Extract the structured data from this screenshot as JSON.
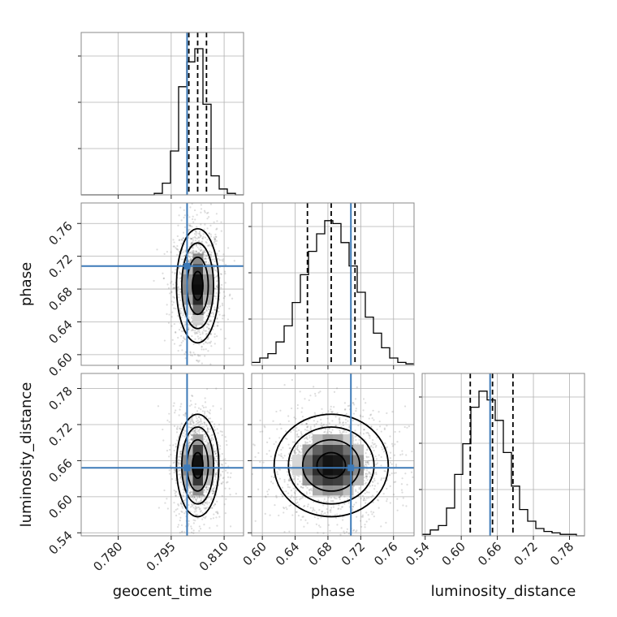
{
  "chart_data": {
    "type": "corner",
    "parameters": [
      "geocent_time",
      "phase",
      "luminosity_distance"
    ],
    "xlabels": [
      "geocent_time",
      "phase",
      "luminosity_distance"
    ],
    "ylabels": [
      "",
      "phase",
      "luminosity_distance"
    ],
    "ranges": {
      "geocent_time": [
        0.7695,
        0.8155
      ],
      "phase": [
        0.587,
        0.785
      ],
      "luminosity_distance": [
        0.535,
        0.805
      ]
    },
    "ticks": {
      "geocent_time": [
        "0.780",
        "0.795",
        "0.810"
      ],
      "phase": [
        "0.60",
        "0.64",
        "0.68",
        "0.72",
        "0.76"
      ],
      "luminosity_distance": [
        "0.54",
        "0.60",
        "0.66",
        "0.72",
        "0.78"
      ]
    },
    "tick_values": {
      "geocent_time": [
        0.78,
        0.795,
        0.81
      ],
      "phase": [
        0.6,
        0.64,
        0.68,
        0.72,
        0.76
      ],
      "luminosity_distance": [
        0.54,
        0.6,
        0.66,
        0.72,
        0.78
      ]
    },
    "truths": {
      "geocent_time": 0.7995,
      "phase": 0.708,
      "luminosity_distance": 0.648
    },
    "quantiles": {
      "geocent_time": [
        0.8,
        0.8025,
        0.805
      ],
      "phase": [
        0.655,
        0.684,
        0.713
      ],
      "luminosity_distance": [
        0.615,
        0.652,
        0.686
      ]
    },
    "histograms": {
      "geocent_time": {
        "edges": [
          0.7695,
          0.7718,
          0.7741,
          0.7764,
          0.7787,
          0.781,
          0.7833,
          0.7856,
          0.7879,
          0.7902,
          0.7925,
          0.7948,
          0.7971,
          0.7994,
          0.8017,
          0.804,
          0.8063,
          0.8086,
          0.8109,
          0.8132,
          0.8155
        ],
        "counts": [
          0,
          0,
          0,
          0,
          0,
          0,
          0,
          0,
          0,
          0.01,
          0.08,
          0.3,
          0.74,
          0.91,
          1.0,
          0.62,
          0.13,
          0.04,
          0.01,
          0
        ]
      },
      "phase": {
        "edges": [
          0.587,
          0.5969,
          0.6068,
          0.6167,
          0.6266,
          0.6365,
          0.6464,
          0.6563,
          0.6662,
          0.6761,
          0.686,
          0.6959,
          0.7058,
          0.7157,
          0.7256,
          0.7355,
          0.7454,
          0.7553,
          0.7652,
          0.7751,
          0.785
        ],
        "counts": [
          0.02,
          0.05,
          0.08,
          0.16,
          0.27,
          0.43,
          0.62,
          0.78,
          0.9,
          0.99,
          0.97,
          0.84,
          0.68,
          0.5,
          0.33,
          0.22,
          0.12,
          0.05,
          0.02,
          0.01
        ]
      },
      "luminosity_distance": {
        "edges": [
          0.535,
          0.5485,
          0.562,
          0.5755,
          0.589,
          0.6025,
          0.616,
          0.6295,
          0.643,
          0.6565,
          0.67,
          0.6835,
          0.697,
          0.7105,
          0.724,
          0.7375,
          0.751,
          0.7645,
          0.778,
          0.7915,
          0.805
        ],
        "counts": [
          0.01,
          0.04,
          0.07,
          0.19,
          0.42,
          0.63,
          0.88,
          0.99,
          0.93,
          0.79,
          0.57,
          0.34,
          0.18,
          0.1,
          0.05,
          0.03,
          0.02,
          0.01,
          0.01,
          0
        ]
      }
    },
    "contour_levels": [
      0.5,
      1.0,
      1.5,
      2.0
    ]
  }
}
